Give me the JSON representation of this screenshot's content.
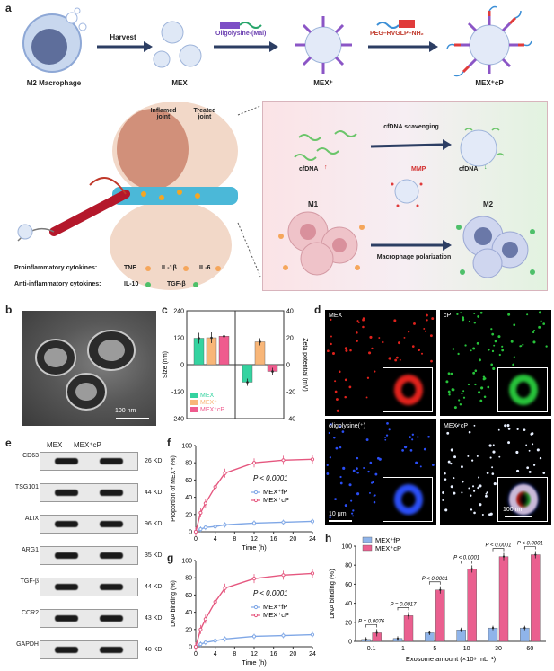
{
  "panels": {
    "a": "a",
    "b": "b",
    "c": "c",
    "d": "d",
    "e": "e",
    "f": "f",
    "g": "g",
    "h": "h"
  },
  "schematic": {
    "m2_macrophage": "M2 Macrophage",
    "harvest": "Harvest",
    "mex": "MEX",
    "oligolysine": "Oligolysine-(Mal)",
    "mex_plus": "MEX⁺",
    "peg": "PEG–RVGLP–NH₂",
    "mex_cp": "MEX⁺cP",
    "inflamed": "Inflamed joint",
    "treated": "Treated joint",
    "cfdna_scavenging": "cfDNA scavenging",
    "cfdna": "cfDNA",
    "mmp": "MMP",
    "m1": "M1",
    "m2": "M2",
    "macrophage_polarization": "Macrophage polarization",
    "proinflammatory": "Proinflammatory cytokines:",
    "anti_inflammatory": "Anti-inflammatory cytokines:",
    "tnf": "TNF",
    "il1b": "IL-1β",
    "il6": "IL-6",
    "il10": "IL-10",
    "tgfb": "TGF-β"
  },
  "tem_scale": "100 nm",
  "microscopy": {
    "tl": "MEX",
    "tr": "cP",
    "bl": "oligolysine(⁺)",
    "br": "MEX⁺cP",
    "scale_left": "10 μm",
    "scale_right": "100 nm",
    "colors": {
      "MEX": "#e0221c",
      "cP": "#27c23a",
      "oligolysine": "#2a4ef5"
    }
  },
  "western": {
    "headers": [
      "MEX",
      "MEX⁺cP"
    ],
    "rows": [
      {
        "protein": "CD63",
        "kd": "26 KD"
      },
      {
        "protein": "TSG101",
        "kd": "44 KD"
      },
      {
        "protein": "ALIX",
        "kd": "96 KD"
      },
      {
        "protein": "ARG1",
        "kd": "35 KD"
      },
      {
        "protein": "TGF-β",
        "kd": "44 KD"
      },
      {
        "protein": "CCR2",
        "kd": "43 KD"
      },
      {
        "protein": "GAPDH",
        "kd": "40 KD"
      }
    ]
  },
  "chart_data": [
    {
      "panel": "c",
      "type": "bar",
      "categories": [
        "MEX",
        "MEX⁺",
        "MEX⁺cP"
      ],
      "series": [
        {
          "name": "Size",
          "values": [
            118,
            120,
            127
          ]
        },
        {
          "name": "Zeta",
          "values": [
            -13,
            17,
            -5
          ]
        }
      ],
      "legend": [
        "MEX",
        "MEX⁺",
        "MEX⁺cP"
      ],
      "colors": [
        "#34d3a0",
        "#f8b678",
        "#ef5b8e"
      ],
      "ylabel": "Size (nm)",
      "y2label": "Zeta potential (mV)",
      "ylim": [
        -240,
        240
      ],
      "y2lim": [
        -40,
        40
      ],
      "yticks": [
        "240",
        "120",
        "0",
        "-120",
        "-240"
      ],
      "y2ticks": [
        "40",
        "20",
        "0",
        "-20",
        "-40"
      ]
    },
    {
      "panel": "f",
      "type": "line",
      "x": [
        0,
        1,
        2,
        4,
        6,
        12,
        18,
        24
      ],
      "series": [
        {
          "name": "MEX⁺fP",
          "values": [
            0,
            3,
            5,
            6,
            8,
            10,
            11,
            12
          ]
        },
        {
          "name": "MEX⁺cP",
          "values": [
            0,
            22,
            33,
            52,
            68,
            80,
            83,
            84
          ]
        }
      ],
      "xlabel": "Time (h)",
      "ylabel": "Proportion of MEX⁺ (%)",
      "xlim": [
        0,
        24
      ],
      "ylim": [
        0,
        100
      ],
      "xticks": [
        "0",
        "4",
        "8",
        "12",
        "16",
        "20",
        "24"
      ],
      "yticks": [
        "0",
        "20",
        "40",
        "60",
        "80",
        "100"
      ],
      "annotation": "P < 0.0001",
      "colors": [
        "#7fa7e6",
        "#e5577f"
      ]
    },
    {
      "panel": "g",
      "type": "line",
      "x": [
        0,
        1,
        2,
        4,
        6,
        12,
        18,
        24
      ],
      "series": [
        {
          "name": "MEX⁺fP",
          "values": [
            0,
            3,
            5,
            7,
            9,
            12,
            13,
            14
          ]
        },
        {
          "name": "MEX⁺cP",
          "values": [
            0,
            20,
            32,
            52,
            68,
            79,
            83,
            85
          ]
        }
      ],
      "xlabel": "Time (h)",
      "ylabel": "DNA binding (%)",
      "xlim": [
        0,
        24
      ],
      "ylim": [
        0,
        100
      ],
      "xticks": [
        "0",
        "4",
        "8",
        "12",
        "16",
        "20",
        "24"
      ],
      "yticks": [
        "0",
        "20",
        "40",
        "60",
        "80",
        "100"
      ],
      "annotation": "P < 0.0001",
      "colors": [
        "#7fa7e6",
        "#e5577f"
      ]
    },
    {
      "panel": "h",
      "type": "bar",
      "categories": [
        "0.1",
        "1",
        "5",
        "10",
        "30",
        "60"
      ],
      "series": [
        {
          "name": "MEX⁺fP",
          "values": [
            2,
            3,
            9,
            12,
            14,
            14
          ]
        },
        {
          "name": "MEX⁺cP",
          "values": [
            9,
            27,
            54,
            76,
            89,
            91
          ]
        }
      ],
      "pvalues": [
        "P = 0.0076",
        "P = 0.0017",
        "P < 0.0001",
        "P < 0.0001",
        "P < 0.0001",
        "P < 0.0001"
      ],
      "xlabel": "Exosome amount (×10⁹ mL⁻¹)",
      "ylabel": "DNA binding (%)",
      "ylim": [
        0,
        100
      ],
      "yticks": [
        "0",
        "20",
        "40",
        "60",
        "80",
        "100"
      ],
      "colors": [
        "#8fb4ea",
        "#ea5f8f"
      ]
    }
  ]
}
